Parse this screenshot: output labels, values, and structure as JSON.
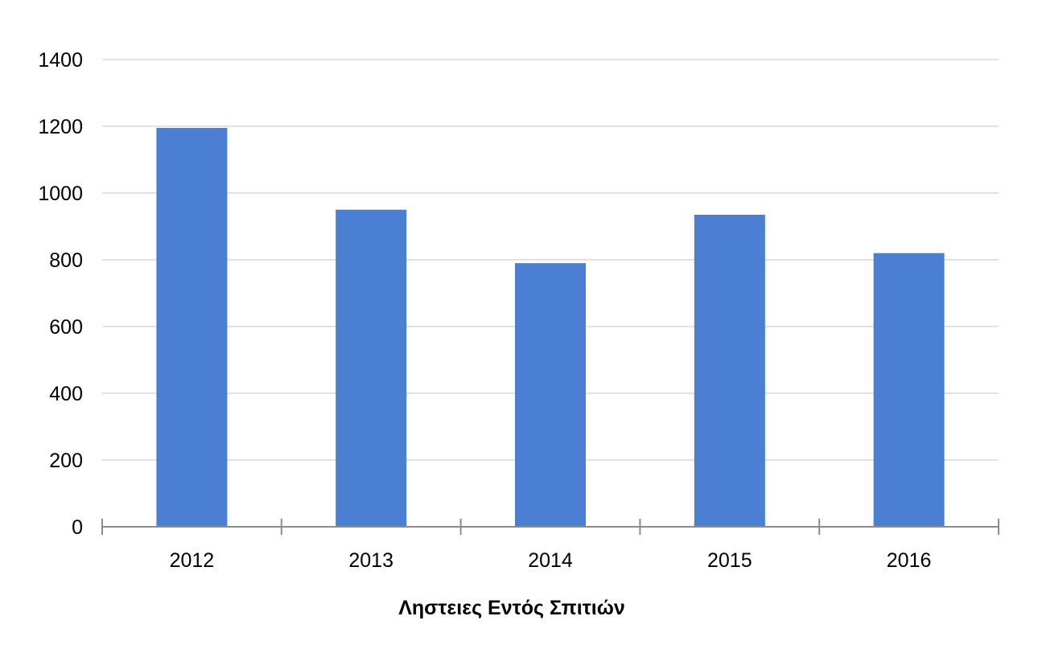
{
  "chart_data": {
    "type": "bar",
    "categories": [
      "2012",
      "2013",
      "2014",
      "2015",
      "2016"
    ],
    "values": [
      1195,
      950,
      790,
      935,
      820
    ],
    "title": "",
    "xlabel": "Ληστειες Εντός Σπιτιών",
    "ylabel": "",
    "ylim": [
      0,
      1400
    ],
    "yticks": [
      0,
      200,
      400,
      600,
      800,
      1000,
      1200,
      1400
    ],
    "grid": true,
    "legend": "none",
    "bar_color": "#4a7fd4"
  }
}
